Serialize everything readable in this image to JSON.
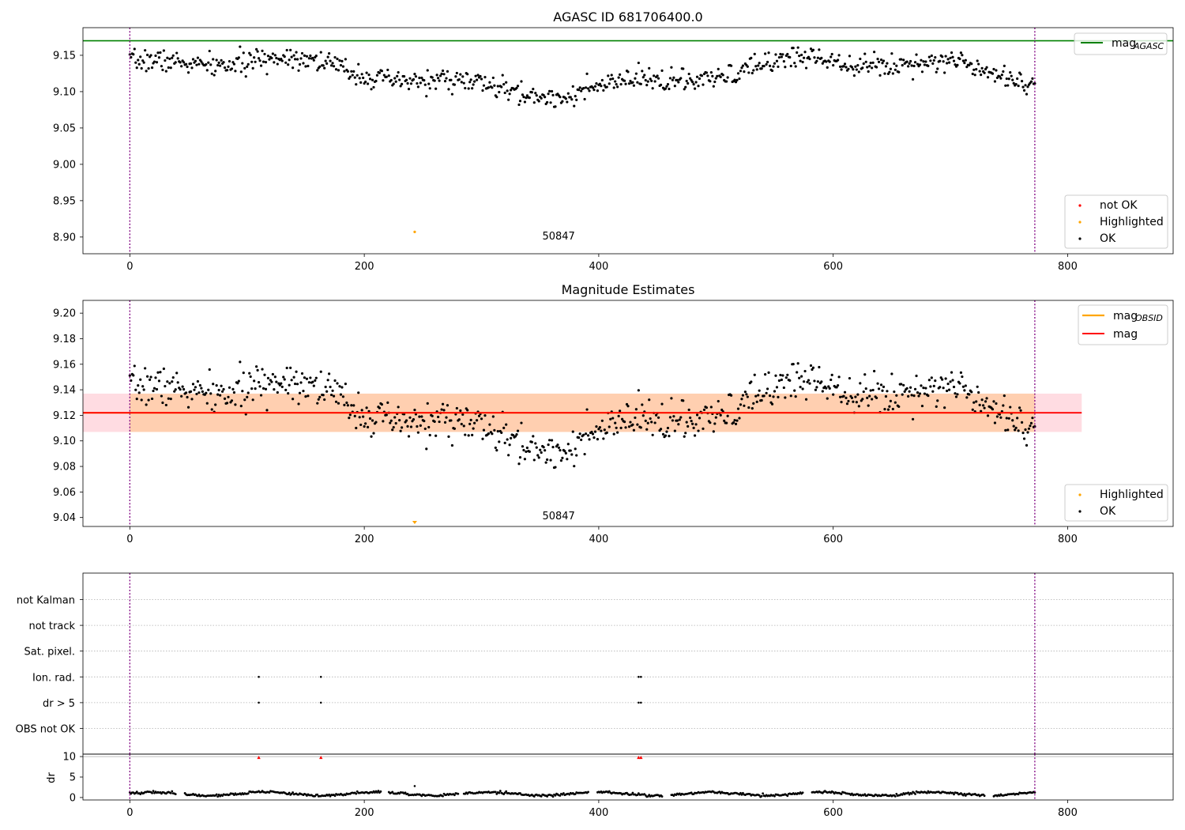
{
  "chart_data": [
    {
      "id": "top",
      "type": "scatter",
      "title": "AGASC ID 681706400.0",
      "xlim": [
        -40,
        890
      ],
      "ylim": [
        8.877,
        9.188
      ],
      "xticks": [
        0,
        200,
        400,
        600,
        800
      ],
      "yticks": [
        8.9,
        8.95,
        9.0,
        9.05,
        9.1,
        9.15
      ],
      "ytick_labels": [
        "8.90",
        "8.95",
        "9.00",
        "9.05",
        "9.10",
        "9.15"
      ],
      "hlines": [
        {
          "name": "mag_AGASC",
          "y": 9.17,
          "color": "#008000"
        }
      ],
      "vlines": [
        0,
        772
      ],
      "obsid_label": {
        "text": "50847",
        "x": 386,
        "y": 8.892
      },
      "series": [
        {
          "name": "OK",
          "color": "#000000",
          "generated": {
            "start": 0,
            "end": 772,
            "step": 1,
            "mean": 9.122,
            "waves": [
              [
                0.022,
                530,
                0.5
              ],
              [
                0.008,
                140,
                1.3
              ]
            ],
            "noise": 0.0075,
            "seed": 7
          }
        },
        {
          "name": "Highlighted",
          "color": "#ffa500",
          "points": [
            [
              243,
              8.907
            ]
          ]
        },
        {
          "name": "not OK",
          "color": "#ff0000",
          "points": []
        }
      ],
      "legends": [
        {
          "position": "upper-right",
          "entries": [
            {
              "label": "mag",
              "sub": "AGASC",
              "kind": "line",
              "color": "#008000"
            }
          ]
        },
        {
          "position": "lower-right",
          "entries": [
            {
              "label": "not OK",
              "kind": "dot",
              "color": "#ff0000"
            },
            {
              "label": "Highlighted",
              "kind": "dot",
              "color": "#ffa500"
            },
            {
              "label": "OK",
              "kind": "dot",
              "color": "#000000"
            }
          ]
        }
      ]
    },
    {
      "id": "middle",
      "type": "scatter",
      "title": "Magnitude Estimates",
      "xlim": [
        -40,
        890
      ],
      "ylim": [
        9.033,
        9.21
      ],
      "xticks": [
        0,
        200,
        400,
        600,
        800
      ],
      "yticks": [
        9.04,
        9.06,
        9.08,
        9.1,
        9.12,
        9.14,
        9.16,
        9.18,
        9.2
      ],
      "ytick_labels": [
        "9.04",
        "9.06",
        "9.08",
        "9.10",
        "9.12",
        "9.14",
        "9.16",
        "9.18",
        "9.20"
      ],
      "mag": 9.122,
      "mag_band": [
        9.107,
        9.137
      ],
      "mag_obsid": 9.122,
      "obsid_band": [
        9.107,
        9.137
      ],
      "vlines": [
        0,
        772
      ],
      "obsid_label": {
        "text": "50847",
        "x": 386,
        "y": 9.037
      },
      "series": [
        {
          "name": "OK",
          "color": "#000000",
          "generated": {
            "start": 0,
            "end": 772,
            "step": 1,
            "mean": 9.122,
            "waves": [
              [
                0.022,
                530,
                0.5
              ],
              [
                0.008,
                140,
                1.3
              ]
            ],
            "noise": 0.0075,
            "seed": 7
          }
        },
        {
          "name": "Highlighted",
          "color": "#ffa500",
          "points": [
            [
              243,
              9.035
            ]
          ]
        }
      ],
      "legends": [
        {
          "position": "upper-right",
          "entries": [
            {
              "label": "mag",
              "sub": "OBSID",
              "kind": "line",
              "color": "#ffa500"
            },
            {
              "label": "mag",
              "kind": "line",
              "color": "#ff0000"
            }
          ]
        },
        {
          "position": "lower-right",
          "entries": [
            {
              "label": "Highlighted",
              "kind": "dot",
              "color": "#ffa500"
            },
            {
              "label": "OK",
              "kind": "dot",
              "color": "#000000"
            }
          ]
        }
      ]
    },
    {
      "id": "flags",
      "type": "scatter",
      "xlim": [
        -40,
        890
      ],
      "ylim": [
        -0.5,
        6.0
      ],
      "categories": [
        "OBS not OK",
        "dr > 5",
        "Ion. rad.",
        "Sat. pixel.",
        "not track",
        "not Kalman"
      ],
      "grid": true,
      "vlines": [
        0,
        772
      ],
      "series": [
        {
          "name": "dr > 5",
          "color": "#000000",
          "points": [
            [
              110,
              1
            ],
            [
              163,
              1
            ],
            [
              434,
              1
            ],
            [
              436,
              1
            ]
          ]
        },
        {
          "name": "Ion. rad.",
          "color": "#000000",
          "points": [
            [
              110,
              2
            ],
            [
              163,
              2
            ],
            [
              434,
              2
            ],
            [
              436,
              2
            ]
          ]
        }
      ]
    },
    {
      "id": "dr",
      "type": "scatter",
      "ylabel": "dr",
      "xlim": [
        -40,
        890
      ],
      "ylim": [
        -0.6,
        10.6
      ],
      "xticks": [
        0,
        200,
        400,
        600,
        800
      ],
      "yticks": [
        0,
        5,
        10
      ],
      "ytick_labels": [
        "0",
        "5",
        "10"
      ],
      "vlines": [
        0,
        772
      ],
      "hline": {
        "y": 10,
        "color": "#aaaaaa"
      },
      "series": [
        {
          "name": "dr",
          "color": "#000000",
          "generated": {
            "start": 0,
            "end": 772,
            "step": 1,
            "mean": 0.9,
            "waves": [
              [
                0.4,
                95,
                0.2
              ]
            ],
            "noise": 0.15,
            "seed": 19,
            "gaps": [
              [
                40,
                46
              ],
              [
                215,
                220
              ],
              [
                281,
                284
              ],
              [
                392,
                398
              ],
              [
                455,
                461
              ],
              [
                575,
                581
              ],
              [
                730,
                736
              ]
            ]
          }
        },
        {
          "name": "outlier",
          "color": "#000000",
          "points": [
            [
              243,
              2.8
            ]
          ]
        },
        {
          "name": "clipped",
          "color": "#ff0000",
          "marker": "triangle",
          "points": [
            [
              110,
              10
            ],
            [
              163,
              10
            ],
            [
              434,
              10
            ],
            [
              436,
              10
            ]
          ]
        }
      ]
    }
  ]
}
